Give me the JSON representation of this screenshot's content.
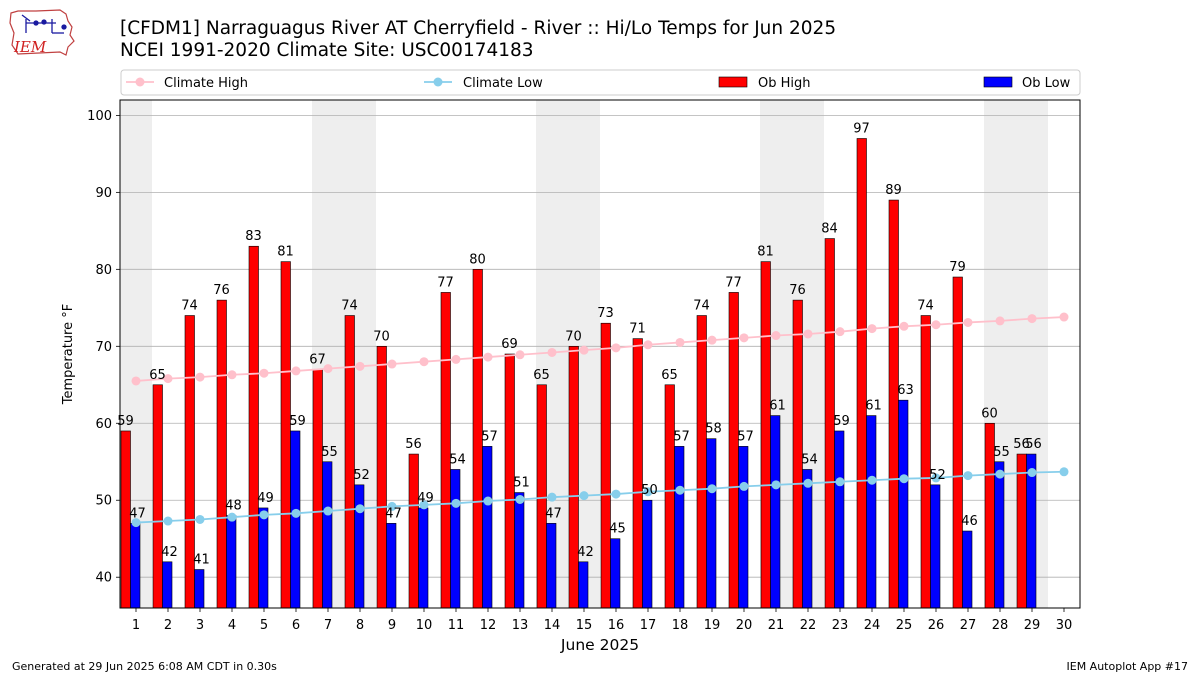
{
  "header": {
    "title_line1": "[CFDM1] Narraguagus River  AT Cherryfield - River :: Hi/Lo Temps for Jun 2025",
    "title_line2": "NCEI 1991-2020 Climate Site: USC00174183",
    "logo_text": "IEM"
  },
  "footer": {
    "left": "Generated at 29 Jun 2025 6:08 AM CDT in 0.30s",
    "right": "IEM Autoplot App #17"
  },
  "colors": {
    "ob_high": "#ff0000",
    "ob_low": "#0000ff",
    "climate_high": "#ffc0cb",
    "climate_low": "#87ceeb",
    "weekend_shade": "#eeeeee",
    "grid": "#b0b0b0"
  },
  "chart_data": {
    "type": "bar",
    "xlabel": "June 2025",
    "ylabel": "Temperature °F",
    "ylim": [
      36,
      102
    ],
    "yticks": [
      40,
      50,
      60,
      70,
      80,
      90,
      100
    ],
    "grid": "horizontal",
    "legend_position": "top",
    "categories": [
      "1",
      "2",
      "3",
      "4",
      "5",
      "6",
      "7",
      "8",
      "9",
      "10",
      "11",
      "12",
      "13",
      "14",
      "15",
      "16",
      "17",
      "18",
      "19",
      "20",
      "21",
      "22",
      "23",
      "24",
      "25",
      "26",
      "27",
      "28",
      "29",
      "30"
    ],
    "shaded_days": [
      1,
      7,
      8,
      14,
      15,
      21,
      22,
      28,
      29
    ],
    "series": [
      {
        "name": "Ob High",
        "kind": "bar",
        "values": [
          59,
          65,
          74,
          76,
          83,
          81,
          67,
          74,
          70,
          56,
          77,
          80,
          69,
          65,
          70,
          73,
          71,
          65,
          74,
          77,
          81,
          76,
          84,
          97,
          89,
          74,
          79,
          60,
          56,
          null
        ],
        "labels": [
          "59",
          "65",
          "74",
          "76",
          "83",
          "81",
          "67",
          "74",
          "70",
          "56",
          "77",
          "80",
          "69",
          "65",
          "70",
          "73",
          "71",
          "65",
          "74",
          "77",
          "81",
          "76",
          "84",
          "97",
          "89",
          "74",
          "79",
          "60",
          "56",
          ""
        ]
      },
      {
        "name": "Ob Low",
        "kind": "bar",
        "values": [
          47,
          42,
          41,
          48,
          49,
          59,
          55,
          52,
          47,
          49,
          54,
          57,
          51,
          47,
          42,
          45,
          50,
          57,
          58,
          57,
          61,
          54,
          59,
          61,
          63,
          52,
          46,
          55,
          56,
          null
        ],
        "labels": [
          "47",
          "42",
          "41",
          "48",
          "49",
          "59",
          "55",
          "52",
          "47",
          "49",
          "54",
          "57",
          "51",
          "47",
          "42",
          "45",
          "50",
          "57",
          "58",
          "57",
          "61",
          "54",
          "59",
          "61",
          "63",
          "52",
          "46",
          "55",
          "56",
          ""
        ]
      },
      {
        "name": "Climate High",
        "kind": "line",
        "values": [
          65.5,
          65.8,
          66.0,
          66.3,
          66.5,
          66.8,
          67.1,
          67.4,
          67.7,
          68.0,
          68.3,
          68.6,
          68.9,
          69.2,
          69.5,
          69.8,
          70.2,
          70.5,
          70.8,
          71.1,
          71.4,
          71.6,
          71.9,
          72.3,
          72.6,
          72.8,
          73.1,
          73.3,
          73.6,
          73.8
        ]
      },
      {
        "name": "Climate Low",
        "kind": "line",
        "values": [
          47.1,
          47.3,
          47.5,
          47.8,
          48.1,
          48.3,
          48.6,
          48.9,
          49.2,
          49.4,
          49.6,
          49.9,
          50.1,
          50.4,
          50.6,
          50.8,
          51.1,
          51.3,
          51.5,
          51.8,
          52.0,
          52.2,
          52.4,
          52.6,
          52.8,
          52.9,
          53.2,
          53.4,
          53.6,
          53.7
        ]
      }
    ]
  }
}
